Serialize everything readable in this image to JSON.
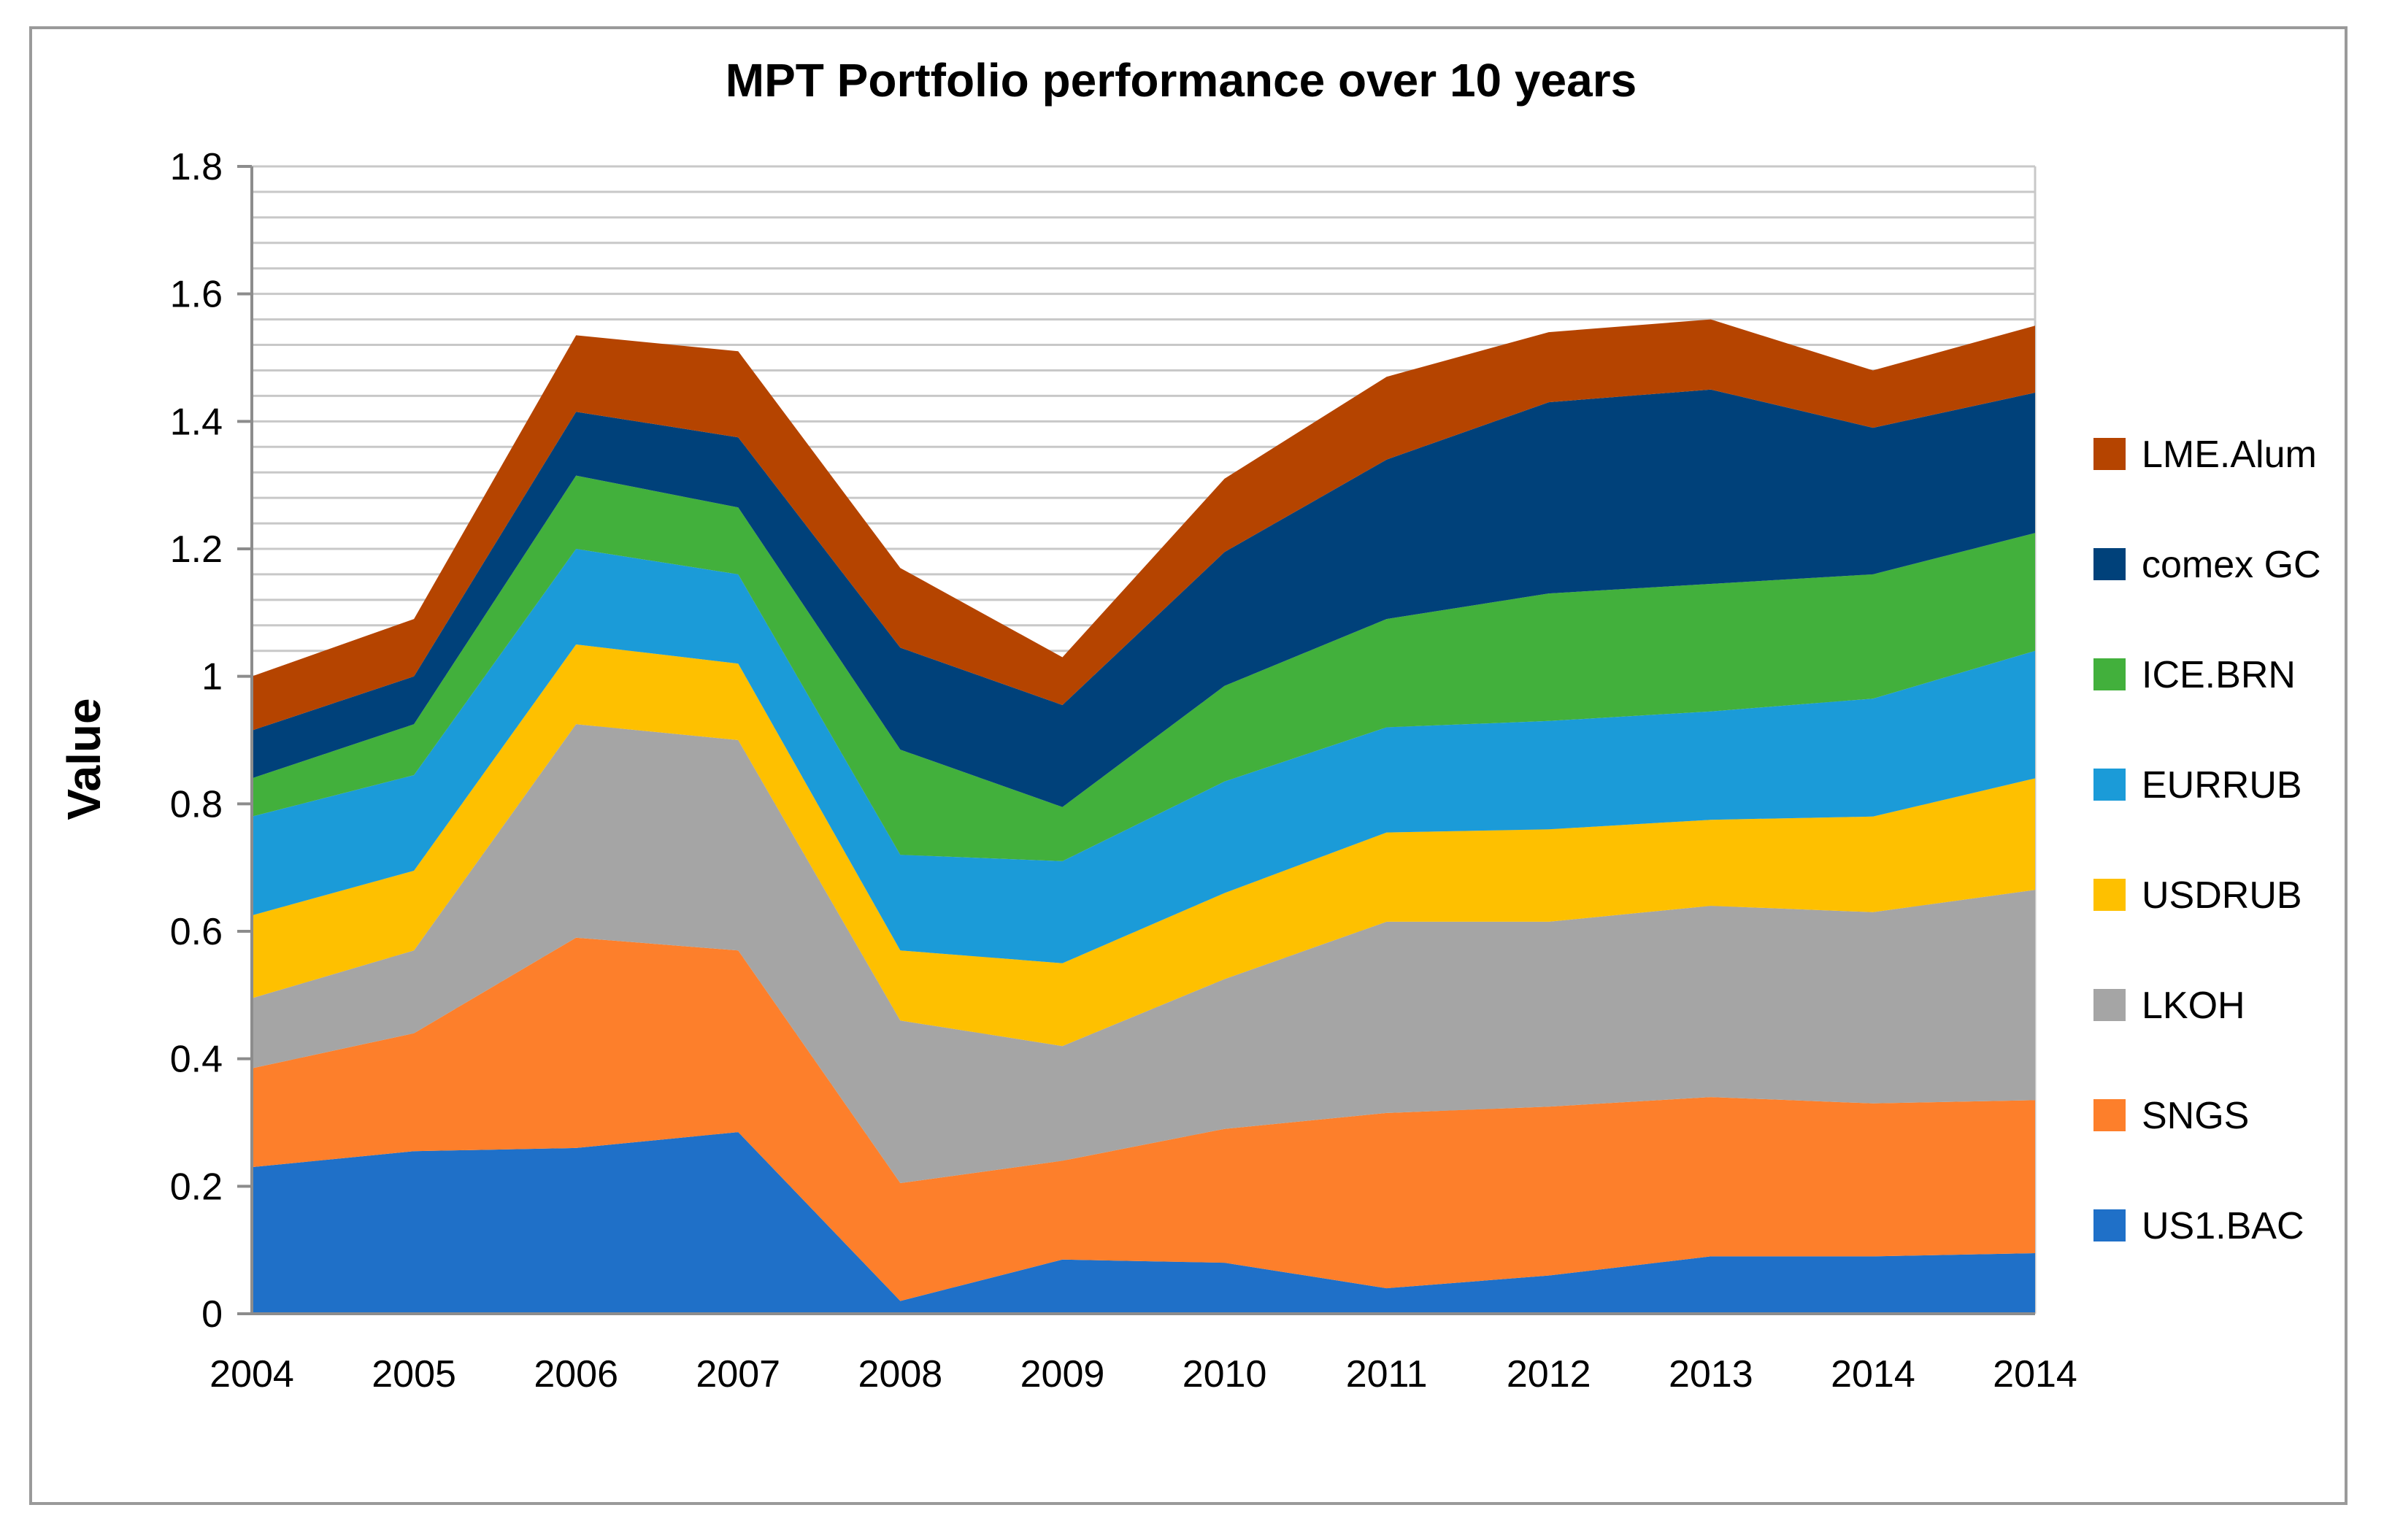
{
  "chart_data": {
    "type": "area",
    "stacked": true,
    "title": "MPT Portfolio performance over 10 years",
    "xlabel": "",
    "ylabel": "Value",
    "ylim": [
      0,
      1.8
    ],
    "yticks": [
      "0",
      "0.2",
      "0.4",
      "0.6",
      "0.8",
      "1",
      "1.2",
      "1.4",
      "1.6",
      "1.8"
    ],
    "ytick_values": [
      0,
      0.2,
      0.4,
      0.6,
      0.8,
      1.0,
      1.2,
      1.4,
      1.6,
      1.8
    ],
    "minor_gridline_step": 0.04,
    "grid": true,
    "legend_position": "right",
    "categories": [
      "2004",
      "2005",
      "2006",
      "2007",
      "2008",
      "2009",
      "2010",
      "2011",
      "2012",
      "2013",
      "2014",
      "2014"
    ],
    "series": [
      {
        "name": "US1.BAC",
        "color": "#1f70c8",
        "values": [
          0.23,
          0.255,
          0.26,
          0.285,
          0.02,
          0.085,
          0.08,
          0.04,
          0.06,
          0.09,
          0.09,
          0.095
        ]
      },
      {
        "name": "SNGS",
        "color": "#fd7f2b",
        "values": [
          0.155,
          0.185,
          0.33,
          0.285,
          0.185,
          0.155,
          0.21,
          0.275,
          0.265,
          0.25,
          0.24,
          0.24
        ]
      },
      {
        "name": "LKOH",
        "color": "#a5a5a5",
        "values": [
          0.11,
          0.13,
          0.335,
          0.33,
          0.255,
          0.18,
          0.235,
          0.3,
          0.29,
          0.3,
          0.3,
          0.33
        ]
      },
      {
        "name": "USDRUB",
        "color": "#fec000",
        "values": [
          0.13,
          0.125,
          0.125,
          0.12,
          0.11,
          0.13,
          0.135,
          0.14,
          0.145,
          0.135,
          0.15,
          0.175
        ]
      },
      {
        "name": "EURRUB",
        "color": "#1b9bd8",
        "values": [
          0.155,
          0.15,
          0.15,
          0.14,
          0.15,
          0.16,
          0.175,
          0.165,
          0.17,
          0.17,
          0.185,
          0.2
        ]
      },
      {
        "name": "ICE.BRN",
        "color": "#42b03c",
        "values": [
          0.06,
          0.08,
          0.115,
          0.105,
          0.165,
          0.085,
          0.15,
          0.17,
          0.2,
          0.2,
          0.195,
          0.185
        ]
      },
      {
        "name": "comex GC",
        "color": "#00417a",
        "values": [
          0.075,
          0.075,
          0.1,
          0.11,
          0.16,
          0.16,
          0.21,
          0.25,
          0.3,
          0.305,
          0.23,
          0.22
        ]
      },
      {
        "name": "LME.Alum",
        "color": "#b54400",
        "values": [
          0.085,
          0.09,
          0.12,
          0.135,
          0.125,
          0.075,
          0.115,
          0.13,
          0.11,
          0.11,
          0.09,
          0.105
        ]
      }
    ]
  }
}
